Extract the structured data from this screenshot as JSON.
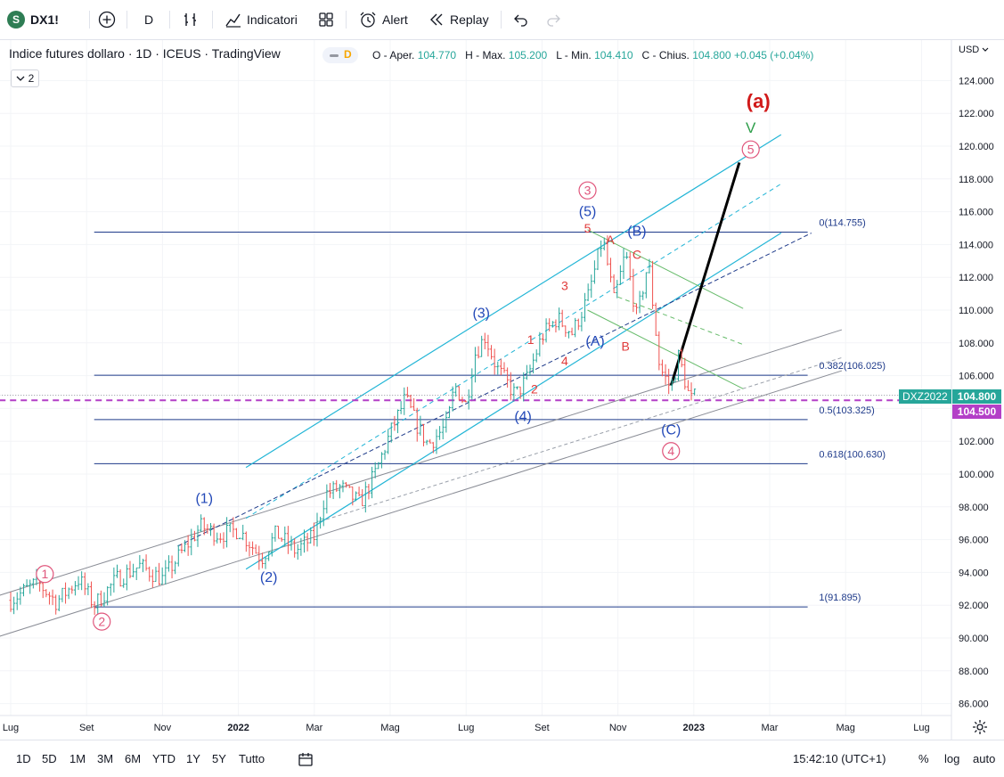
{
  "toolbar": {
    "symbol": "DX1!",
    "symbol_logo_letter": "S",
    "interval": "D",
    "indicators_label": "Indicatori",
    "alert_label": "Alert",
    "replay_label": "Replay",
    "icons": [
      "add-symbol-icon",
      "bar-style-icon",
      "indicators-icon",
      "layouts-icon",
      "alert-icon",
      "replay-icon",
      "undo-icon",
      "redo-icon"
    ]
  },
  "legend": {
    "title": "Indice futures dollaro · 1D · ICEUS · TradingView",
    "badge": "D",
    "collapse_count": "2",
    "ohlc": [
      {
        "label": "O - Aper.",
        "value": "104.770"
      },
      {
        "label": "H - Max.",
        "value": "105.200"
      },
      {
        "label": "L - Min.",
        "value": "104.410"
      },
      {
        "label": "C - Chius.",
        "value": "104.800"
      }
    ],
    "change": "+0.045 (+0.04%)"
  },
  "currency": "USD",
  "chart_data": {
    "type": "candlestick",
    "ylim": [
      85.0,
      125.5
    ],
    "y_ticks": [
      "124.000",
      "122.000",
      "120.000",
      "118.000",
      "116.000",
      "114.000",
      "112.000",
      "110.000",
      "108.000",
      "106.000",
      "104.000",
      "102.000",
      "100.000",
      "98.000",
      "96.000",
      "94.000",
      "92.000",
      "90.000",
      "88.000",
      "86.000"
    ],
    "x_ticks": [
      {
        "label": "Lug",
        "t": 0.0
      },
      {
        "label": "Set",
        "t": 2.0
      },
      {
        "label": "Nov",
        "t": 4.0
      },
      {
        "label": "2022",
        "t": 6.0
      },
      {
        "label": "Mar",
        "t": 8.0
      },
      {
        "label": "Mag",
        "t": 10.0
      },
      {
        "label": "Lug",
        "t": 12.0
      },
      {
        "label": "Set",
        "t": 14.0
      },
      {
        "label": "Nov",
        "t": 16.0
      },
      {
        "label": "2023",
        "t": 18.0
      },
      {
        "label": "Mar",
        "t": 20.0
      },
      {
        "label": "Mag",
        "t": 22.0
      },
      {
        "label": "Lug",
        "t": 24.0
      }
    ],
    "price_path": [
      [
        0.0,
        92.3
      ],
      [
        0.7,
        93.4
      ],
      [
        1.2,
        92.2
      ],
      [
        1.8,
        93.6
      ],
      [
        2.2,
        92.0
      ],
      [
        2.8,
        93.6
      ],
      [
        3.4,
        94.4
      ],
      [
        4.0,
        93.6
      ],
      [
        4.5,
        95.2
      ],
      [
        5.0,
        96.8
      ],
      [
        5.5,
        96.3
      ],
      [
        6.0,
        96.6
      ],
      [
        6.4,
        95.5
      ],
      [
        6.6,
        94.8
      ],
      [
        7.0,
        96.4
      ],
      [
        7.5,
        95.3
      ],
      [
        8.0,
        96.2
      ],
      [
        8.3,
        98.8
      ],
      [
        8.7,
        99.2
      ],
      [
        9.2,
        98.2
      ],
      [
        9.6,
        100.0
      ],
      [
        10.0,
        102.5
      ],
      [
        10.4,
        104.6
      ],
      [
        10.7,
        103.0
      ],
      [
        11.0,
        101.8
      ],
      [
        11.5,
        103.0
      ],
      [
        11.7,
        105.4
      ],
      [
        12.0,
        104.2
      ],
      [
        12.2,
        107.2
      ],
      [
        12.5,
        108.4
      ],
      [
        12.8,
        106.5
      ],
      [
        13.3,
        104.8
      ],
      [
        13.6,
        105.8
      ],
      [
        14.0,
        108.4
      ],
      [
        14.4,
        109.5
      ],
      [
        14.8,
        108.6
      ],
      [
        15.2,
        110.7
      ],
      [
        15.6,
        114.4
      ],
      [
        15.9,
        110.5
      ],
      [
        16.2,
        113.5
      ],
      [
        16.5,
        109.5
      ],
      [
        16.8,
        113.0
      ],
      [
        17.1,
        106.5
      ],
      [
        17.4,
        105.2
      ],
      [
        17.6,
        107.2
      ],
      [
        17.9,
        104.5
      ],
      [
        18.1,
        104.8
      ]
    ],
    "last_price": "104.800",
    "dashed_level": "104.500",
    "futures_symbol": "DXZ2022",
    "fibonacci": [
      {
        "label": "0(114.755)",
        "price": 114.755
      },
      {
        "label": "0.382(106.025)",
        "price": 106.025
      },
      {
        "label": "0.5(103.325)",
        "price": 103.325
      },
      {
        "label": "0.618(100.630)",
        "price": 100.63
      },
      {
        "label": "1(91.895)",
        "price": 91.895
      }
    ],
    "wave_labels": [
      {
        "text": "1",
        "t": 0.9,
        "p": 93.9,
        "style": "circle-pink"
      },
      {
        "text": "2",
        "t": 2.4,
        "p": 91.0,
        "style": "circle-pink"
      },
      {
        "text": "(1)",
        "t": 5.1,
        "p": 98.5,
        "style": "blue"
      },
      {
        "text": "(2)",
        "t": 6.8,
        "p": 93.7,
        "style": "blue"
      },
      {
        "text": "(3)",
        "t": 12.4,
        "p": 109.8,
        "style": "blue"
      },
      {
        "text": "(4)",
        "t": 13.5,
        "p": 103.5,
        "style": "blue"
      },
      {
        "text": "(5)",
        "t": 15.2,
        "p": 116.0,
        "style": "blue"
      },
      {
        "text": "3",
        "t": 15.2,
        "p": 117.3,
        "style": "circle-pink"
      },
      {
        "text": "5",
        "t": 15.2,
        "p": 115.0,
        "style": "red"
      },
      {
        "text": "1",
        "t": 13.7,
        "p": 108.2,
        "style": "red"
      },
      {
        "text": "2",
        "t": 13.8,
        "p": 105.2,
        "style": "red"
      },
      {
        "text": "3",
        "t": 14.6,
        "p": 111.5,
        "style": "red"
      },
      {
        "text": "4",
        "t": 14.6,
        "p": 106.9,
        "style": "red"
      },
      {
        "text": "A",
        "t": 15.8,
        "p": 114.3,
        "style": "red"
      },
      {
        "text": "C",
        "t": 16.5,
        "p": 113.4,
        "style": "red"
      },
      {
        "text": "B",
        "t": 16.2,
        "p": 107.8,
        "style": "red"
      },
      {
        "text": "(A)",
        "t": 15.4,
        "p": 108.1,
        "style": "blue"
      },
      {
        "text": "(B)",
        "t": 16.5,
        "p": 114.8,
        "style": "blue"
      },
      {
        "text": "(C)",
        "t": 17.4,
        "p": 102.7,
        "style": "blue"
      },
      {
        "text": "4",
        "t": 17.4,
        "p": 101.4,
        "style": "circle-pink"
      },
      {
        "text": "5",
        "t": 19.5,
        "p": 119.8,
        "style": "circle-pink"
      },
      {
        "text": "V",
        "t": 19.5,
        "p": 121.1,
        "style": "green"
      },
      {
        "text": "(a)",
        "t": 19.7,
        "p": 122.6,
        "style": "red-big"
      }
    ]
  },
  "bottombar": {
    "ranges": [
      "1D",
      "5D",
      "1M",
      "3M",
      "6M",
      "YTD",
      "1Y",
      "5Y",
      "Tutto"
    ],
    "time": "15:42:10 (UTC+1)",
    "pct": "%",
    "log": "log",
    "auto": "auto"
  },
  "colors": {
    "up": "#26a69a",
    "down": "#ef5350",
    "channel": "#22b5d6",
    "fib": "#1e3a8a",
    "green_lines": "#66bb6a",
    "dashed_magenta": "#b33fc7",
    "pink": "#e0567c",
    "blue_label": "#2349b8"
  }
}
